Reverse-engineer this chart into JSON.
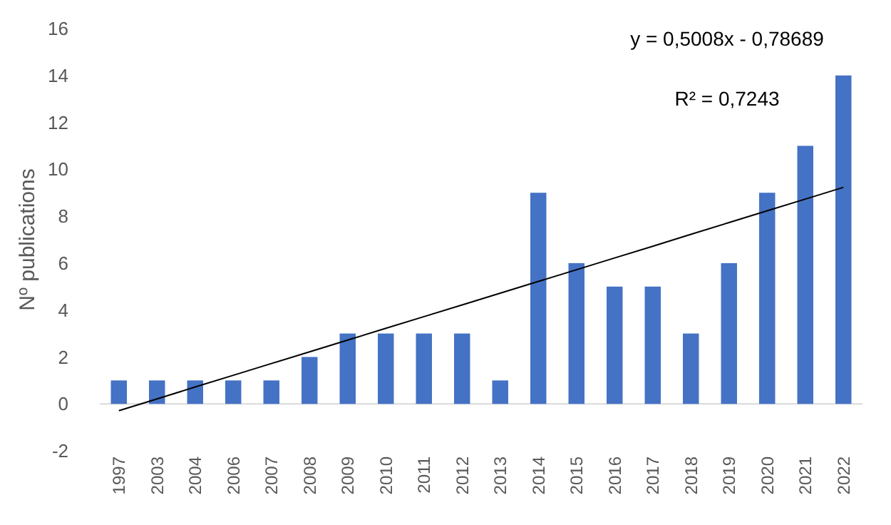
{
  "chart_data": {
    "type": "bar",
    "ylabel": "Nº publications",
    "categories": [
      "1997",
      "2003",
      "2004",
      "2006",
      "2007",
      "2008",
      "2009",
      "2010",
      "2011",
      "2012",
      "2013",
      "2014",
      "2015",
      "2016",
      "2017",
      "2018",
      "2019",
      "2020",
      "2021",
      "2022"
    ],
    "series": [
      {
        "color": "#4472c4",
        "values": [
          1,
          1,
          1,
          1,
          1,
          2,
          3,
          3,
          3,
          3,
          1,
          9,
          6,
          5,
          5,
          3,
          6,
          9,
          11,
          14
        ]
      },
      {
        "type": "line",
        "color": "#000000",
        "values": [
          -0.29,
          0.21,
          0.72,
          1.22,
          1.72,
          2.22,
          2.72,
          3.22,
          3.72,
          4.22,
          4.72,
          5.22,
          5.72,
          6.22,
          6.72,
          7.23,
          7.73,
          8.23,
          8.73,
          9.23
        ]
      }
    ],
    "ylim": [
      -2,
      16
    ],
    "yticks": [
      -2,
      0,
      2,
      4,
      6,
      8,
      10,
      12,
      14,
      16
    ],
    "annotations": [
      "y = 0,5008x - 0,78689",
      "R² = 0,7243"
    ]
  }
}
